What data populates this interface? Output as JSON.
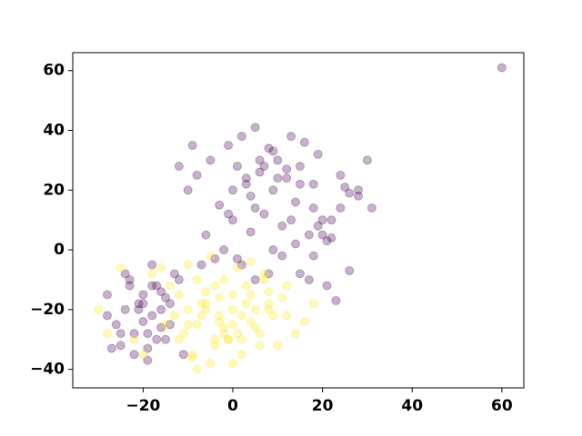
{
  "chart_data": {
    "type": "scatter",
    "xlim": [
      -35.7,
      64.9
    ],
    "ylim": [
      -46.2,
      66
    ],
    "xticks": [
      {
        "value": -20,
        "label": "−20"
      },
      0,
      20,
      40,
      60
    ],
    "yticks": [
      {
        "value": -40,
        "label": "−40"
      },
      {
        "value": -20,
        "label": "−20"
      },
      0,
      20,
      40,
      60
    ],
    "alpha": 0.3,
    "series": [
      {
        "color": "#440154",
        "x": [
          -10,
          -8,
          -5,
          -3,
          -1,
          0,
          1,
          2,
          3,
          4,
          5,
          6,
          7,
          8,
          9,
          10,
          11,
          12,
          13,
          14,
          15,
          16,
          17,
          18,
          19,
          20,
          22,
          24,
          26,
          28,
          -12,
          -6,
          -2,
          2,
          5,
          8,
          11,
          14,
          17,
          21,
          -4,
          0,
          3,
          6,
          9,
          12,
          15,
          18,
          -7,
          -1,
          4,
          7,
          10,
          13,
          1,
          5,
          9,
          30,
          25,
          -9,
          -28,
          -26,
          -25,
          -24,
          -23,
          -22,
          -21,
          -20,
          -19,
          -18,
          -17,
          -16,
          -15,
          -14,
          -13,
          -22,
          -20,
          -18,
          -16,
          -25,
          -27,
          -24,
          -21,
          -19,
          -17,
          -15,
          -12,
          -28,
          -23,
          -19,
          -14,
          -11,
          -20,
          -18,
          -16,
          20,
          21,
          19,
          22,
          18,
          24,
          26,
          28,
          31,
          15,
          23,
          60
        ],
        "y": [
          20,
          25,
          30,
          15,
          35,
          10,
          28,
          38,
          22,
          18,
          41,
          26,
          12,
          34,
          20,
          30,
          8,
          24,
          38,
          16,
          28,
          36,
          5,
          22,
          32,
          10,
          4,
          25,
          19,
          18,
          28,
          5,
          0,
          -5,
          14,
          -8,
          -2,
          2,
          -10,
          -12,
          -3,
          20,
          24,
          30,
          33,
          27,
          22,
          14,
          -5,
          12,
          6,
          28,
          24,
          10,
          -3,
          -10,
          0,
          30,
          21,
          35,
          -15,
          -25,
          -32,
          -20,
          -10,
          -28,
          -18,
          -15,
          -33,
          -22,
          -12,
          -26,
          -30,
          -18,
          -8,
          -35,
          -24,
          -5,
          -14,
          -28,
          -33,
          -8,
          -20,
          -37,
          -30,
          -16,
          -10,
          -22,
          -12,
          -28,
          -25,
          -35,
          -18,
          -12,
          -20,
          5,
          3,
          8,
          10,
          -2,
          14,
          -7,
          20,
          14,
          -8,
          -17,
          61
        ]
      },
      {
        "color": "#fde725",
        "x": [
          -30,
          -28,
          -25,
          -22,
          -20,
          -18,
          -15,
          -12,
          -10,
          -8,
          -6,
          -4,
          -2,
          0,
          2,
          4,
          6,
          8,
          10,
          12,
          14,
          16,
          18,
          -14,
          -11,
          -9,
          -7,
          -5,
          -3,
          -1,
          1,
          3,
          5,
          7,
          9,
          11,
          -13,
          -10,
          -6,
          -2,
          2,
          6,
          -8,
          -4,
          0,
          4,
          8,
          -16,
          -12,
          -8,
          -4,
          0,
          4,
          8,
          12,
          -6,
          -2,
          2,
          -10,
          -5,
          0,
          5,
          -3,
          -9,
          -1,
          3,
          7,
          -7,
          -3,
          1
        ],
        "y": [
          -20,
          -28,
          -6,
          -30,
          -35,
          -8,
          -25,
          -15,
          -5,
          -40,
          -20,
          -30,
          -10,
          -25,
          -35,
          -15,
          -28,
          -20,
          -32,
          -12,
          -28,
          -24,
          -18,
          -12,
          -28,
          -35,
          -18,
          -38,
          -22,
          -30,
          -6,
          -18,
          -26,
          -10,
          -22,
          -16,
          -22,
          -20,
          -14,
          -28,
          -22,
          -32,
          -25,
          -12,
          -20,
          -24,
          -18,
          -6,
          -30,
          -10,
          -32,
          -38,
          -4,
          -14,
          -22,
          -18,
          -26,
          -30,
          -25,
          -2,
          -15,
          -20,
          -24,
          -36,
          -30,
          -12,
          -8,
          -22,
          -16,
          -28
        ]
      }
    ]
  }
}
